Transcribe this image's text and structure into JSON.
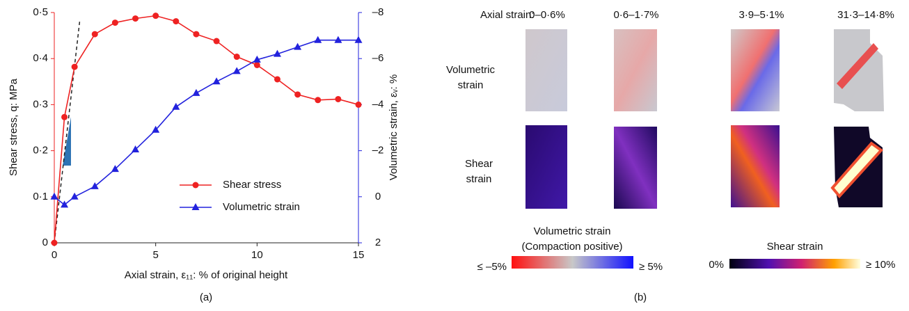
{
  "chart_data": {
    "type": "line",
    "xlabel": "Axial strain, ε₁₁: % of original height",
    "ylabel": "Shear stress, q: MPa",
    "y2label": "Volumetric strain, εᵥ: %",
    "caption": "(a)",
    "xlim": [
      0,
      15
    ],
    "xticks": [
      0,
      5,
      10,
      15
    ],
    "ylim": [
      0,
      0.5
    ],
    "yticks": [
      0,
      {
        "value": 0.1,
        "label": "0·1"
      },
      {
        "value": 0.2,
        "label": "0·2"
      },
      {
        "value": 0.3,
        "label": "0·3"
      },
      {
        "value": 0.4,
        "label": "0·4"
      },
      {
        "value": 0.5,
        "label": "0·5"
      }
    ],
    "y2lim": [
      2,
      -8
    ],
    "y2ticks": [
      2,
      0,
      {
        "value": -2,
        "label": "–2"
      },
      {
        "value": -4,
        "label": "–4"
      },
      {
        "value": -6,
        "label": "–6"
      },
      {
        "value": -8,
        "label": "–8"
      }
    ],
    "legend": "lower right",
    "series": [
      {
        "name": "Shear stress",
        "color": "#ee2222",
        "marker": "circle",
        "x": [
          0,
          0.5,
          1,
          2,
          3,
          4,
          5,
          6,
          7,
          8,
          9,
          10,
          11,
          12,
          13,
          14,
          15
        ],
        "values": [
          0,
          0.273,
          0.382,
          0.453,
          0.478,
          0.487,
          0.493,
          0.481,
          0.453,
          0.438,
          0.404,
          0.386,
          0.355,
          0.322,
          0.31,
          0.312,
          0.3
        ]
      },
      {
        "name": "Volumetric strain",
        "color": "#2222dd",
        "marker": "triangle",
        "axis": "y2",
        "x": [
          0,
          0.5,
          1,
          2,
          3,
          4,
          5,
          6,
          7,
          8,
          9,
          10,
          11,
          12,
          13,
          14,
          15
        ],
        "values": [
          0,
          0.35,
          0,
          -0.45,
          -1.2,
          -2.05,
          -2.9,
          -3.9,
          -4.5,
          -5,
          -5.45,
          -5.95,
          -6.2,
          -6.5,
          -6.8,
          -6.8,
          -6.8
        ]
      }
    ],
    "reference_line": {
      "x": [
        0,
        1.25
      ],
      "y": [
        0,
        0.48
      ]
    }
  },
  "panel_b": {
    "header": "Axial strain:",
    "columns": [
      "0–0·6%",
      "0·6–1·7%",
      "3·9–5·1%",
      "31·3–14·8%"
    ],
    "rows": [
      [
        "Volumetric",
        "strain"
      ],
      [
        "Shear",
        "strain"
      ]
    ],
    "colorbar_volumetric": {
      "title": [
        "Volumetric strain",
        "(Compaction positive)"
      ],
      "min_label": "≤ –5%",
      "max_label": "≥ 5%"
    },
    "colorbar_shear": {
      "title": "Shear strain",
      "min_label": "0%",
      "max_label": "≥ 10%"
    },
    "caption": "(b)"
  }
}
